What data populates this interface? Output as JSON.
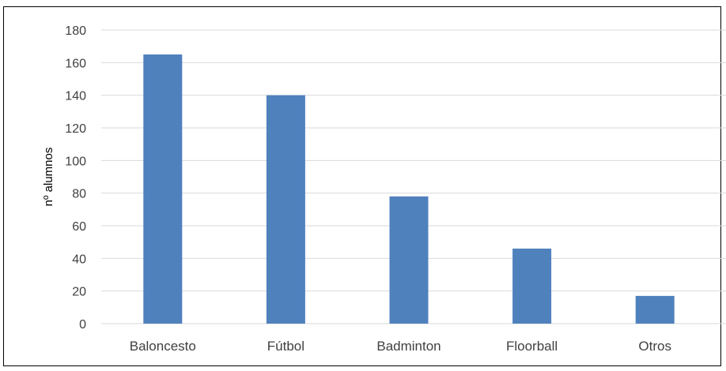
{
  "chart_data": {
    "type": "bar",
    "title": "",
    "xlabel": "",
    "ylabel": "nº alumnos",
    "categories": [
      "Baloncesto",
      "Fútbol",
      "Badminton",
      "Floorball",
      "Otros"
    ],
    "values": [
      165,
      140,
      78,
      46,
      17
    ],
    "ylim": [
      0,
      180
    ],
    "yticks": [
      0,
      20,
      40,
      60,
      80,
      100,
      120,
      140,
      160,
      180
    ],
    "grid": true,
    "bar_color": "#4f81bd",
    "grid_color": "#d9d9d9"
  }
}
